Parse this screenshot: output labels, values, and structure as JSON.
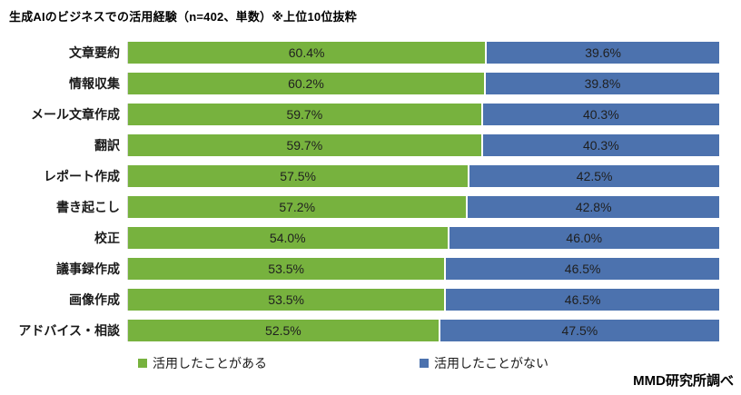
{
  "title": "生成AIのビジネスでの活用経験（n=402、単数）※上位10位抜粋",
  "source_note": "MMD研究所調べ",
  "colors": {
    "used": "#77B23E",
    "not_used": "#4C72AE",
    "axis_line": "#d9d9d9",
    "value_text": "#1f1f1f"
  },
  "legend": {
    "items": [
      {
        "label": "活用したことがある",
        "color": "#77B23E"
      },
      {
        "label": "活用したことがない",
        "color": "#4C72AE"
      }
    ]
  },
  "chart_data": {
    "type": "bar",
    "orientation": "horizontal",
    "stacked": true,
    "grid": false,
    "legend_position": "bottom",
    "xlim": [
      0,
      100
    ],
    "title": "生成AIのビジネスでの活用経験（n=402、単数）※上位10位抜粋",
    "categories": [
      "文章要約",
      "情報収集",
      "メール文章作成",
      "翻訳",
      "レポート作成",
      "書き起こし",
      "校正",
      "議事録作成",
      "画像作成",
      "アドバイス・相談"
    ],
    "series": [
      {
        "name": "活用したことがある",
        "color": "#77B23E",
        "values": [
          60.4,
          60.2,
          59.7,
          59.7,
          57.5,
          57.2,
          54.0,
          53.5,
          53.5,
          52.5
        ],
        "labels": [
          "60.4%",
          "60.2%",
          "59.7%",
          "59.7%",
          "57.5%",
          "57.2%",
          "54.0%",
          "53.5%",
          "53.5%",
          "52.5%"
        ]
      },
      {
        "name": "活用したことがない",
        "color": "#4C72AE",
        "values": [
          39.6,
          39.8,
          40.3,
          40.3,
          42.5,
          42.8,
          46.0,
          46.5,
          46.5,
          47.5
        ],
        "labels": [
          "39.6%",
          "39.8%",
          "40.3%",
          "40.3%",
          "42.5%",
          "42.8%",
          "46.0%",
          "46.5%",
          "46.5%",
          "47.5%"
        ]
      }
    ]
  }
}
